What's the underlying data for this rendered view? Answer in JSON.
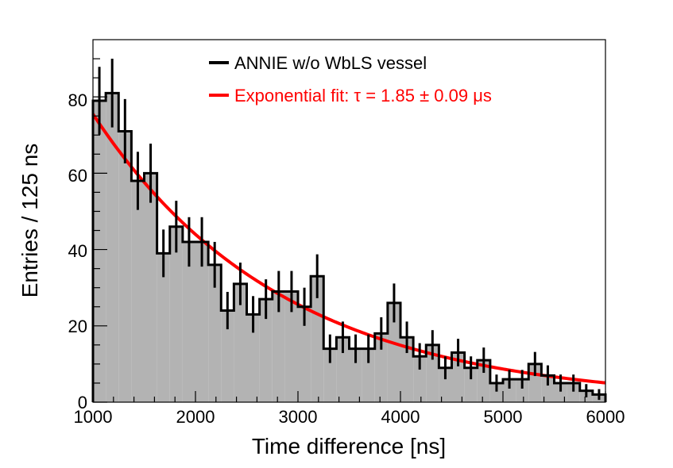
{
  "chart_data": {
    "type": "histogram",
    "title": "",
    "xlabel": "Time difference [ns]",
    "ylabel": "Entries / 125 ns",
    "xlim": [
      1000,
      6000
    ],
    "ylim": [
      0,
      95
    ],
    "bin_width": 125,
    "x_ticks": [
      "1000",
      "2000",
      "3000",
      "4000",
      "5000",
      "6000"
    ],
    "y_ticks": [
      "0",
      "20",
      "40",
      "60",
      "80"
    ],
    "x_tick_values": [
      1000,
      2000,
      3000,
      4000,
      5000,
      6000
    ],
    "y_tick_values": [
      0,
      20,
      40,
      60,
      80
    ],
    "legend_position": "top-right",
    "series": [
      {
        "name": "ANNIE w/o WbLS vessel",
        "kind": "histogram",
        "color": "#000000",
        "fill": "#b3b3b3",
        "bin_edges_start": 1000,
        "values": [
          79,
          81,
          71,
          58,
          60,
          39,
          46,
          42,
          42,
          36,
          24,
          31,
          23,
          27,
          29,
          29,
          25,
          33,
          14,
          17,
          14,
          14,
          18,
          26,
          17,
          12,
          15,
          9,
          13,
          9,
          11,
          5,
          6,
          6,
          10,
          7,
          5,
          5,
          3,
          2
        ]
      },
      {
        "name": "Exponential fit: τ = 1.85 ± 0.09 μs",
        "kind": "line",
        "color": "#ff0000",
        "amplitude_at_1000": 75.5,
        "tau_ns": 1850,
        "x_range": [
          1000,
          6000
        ]
      }
    ],
    "legend": [
      {
        "label": "ANNIE w/o WbLS vessel",
        "color": "#000000"
      },
      {
        "label": "Exponential fit: τ = 1.85 ± 0.09 μs",
        "color": "#ff0000"
      }
    ]
  }
}
